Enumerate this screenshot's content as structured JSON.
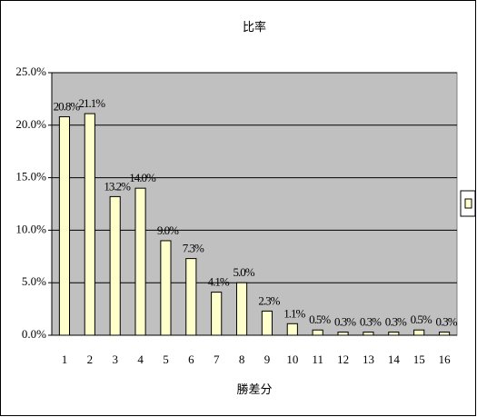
{
  "chart_data": {
    "type": "bar",
    "title": "比率",
    "x_label": "勝差分",
    "categories": [
      "1",
      "2",
      "3",
      "4",
      "5",
      "6",
      "7",
      "8",
      "9",
      "10",
      "11",
      "12",
      "13",
      "14",
      "15",
      "16"
    ],
    "values": [
      20.8,
      21.1,
      13.2,
      14.0,
      9.0,
      7.3,
      4.1,
      5.0,
      2.3,
      1.1,
      0.5,
      0.3,
      0.3,
      0.3,
      0.5,
      0.3
    ],
    "value_labels": [
      "20.8%",
      "21.1%",
      "13.2%",
      "14.0%",
      "9.0%",
      "7.3%",
      "4.1%",
      "5.0%",
      "2.3%",
      "1.1%",
      "0.5%",
      "0.3%",
      "0.3%",
      "0.3%",
      "0.5%",
      "0.3%"
    ],
    "color": "#ffffcc",
    "ylim": [
      0,
      25
    ],
    "yticks": [
      {
        "value": 0,
        "label": "0.0%"
      },
      {
        "value": 5,
        "label": "5.0%"
      },
      {
        "value": 10,
        "label": "10.0%"
      },
      {
        "value": 15,
        "label": "15.0%"
      },
      {
        "value": 20,
        "label": "20.0%"
      },
      {
        "value": 25,
        "label": "25.0%"
      }
    ],
    "grid": true
  }
}
